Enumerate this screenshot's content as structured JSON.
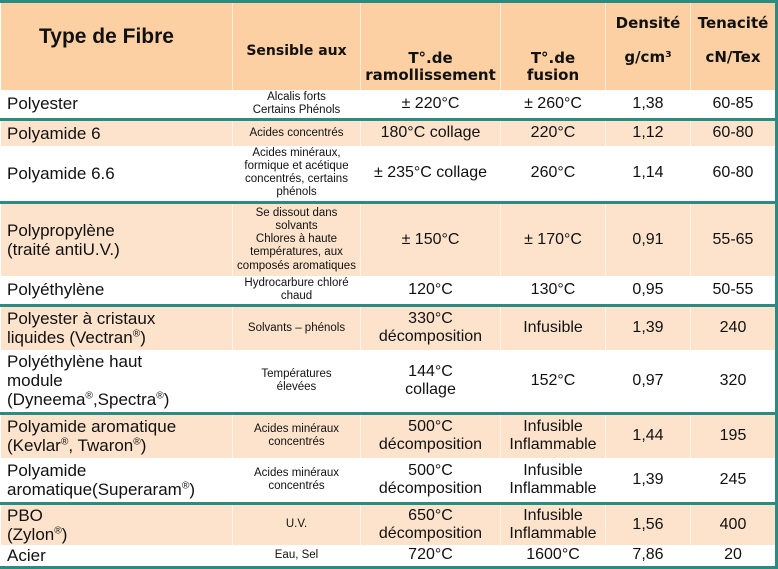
{
  "headers": {
    "type": "Type de Fibre",
    "sensible": "Sensible aux",
    "ramollissement": [
      "T°.de",
      "ramollissement"
    ],
    "fusion": [
      "T°.de",
      "fusion"
    ],
    "densite": [
      "Densité",
      "g/cm³"
    ],
    "tenacite": [
      "Tenacité",
      "cN/Tex"
    ]
  },
  "colors": {
    "header_bg": "#fdd0a4",
    "alt_row_bg": "#fde3cc",
    "border": "#2b8a82"
  },
  "rows": [
    {
      "name": [
        "Polyester"
      ],
      "sensible": [
        "Alcalis forts",
        "Certains Phénols"
      ],
      "ramollissement": [
        "± 220°C"
      ],
      "fusion": [
        "± 260°C"
      ],
      "densite": "1,38",
      "tenacite": "60-85"
    },
    {
      "name": [
        "Polyamide 6"
      ],
      "sensible": [
        "Acides concentrés"
      ],
      "ramollissement": [
        "180°C collage"
      ],
      "fusion": [
        "220°C"
      ],
      "densite": "1,12",
      "tenacite": "60-80"
    },
    {
      "name": [
        "Polyamide 6.6"
      ],
      "sensible": [
        "Acides minéraux,",
        "formique et acétique",
        "concentrés, certains",
        "phénols"
      ],
      "ramollissement": [
        "± 235°C collage"
      ],
      "fusion": [
        "260°C"
      ],
      "densite": "1,14",
      "tenacite": "60-80"
    },
    {
      "name": [
        "Polypropylène",
        "(traité antiU.V.)"
      ],
      "sensible": [
        "Se dissout dans",
        "solvants",
        "Chlores à haute",
        "températures, aux",
        "composés aromatiques"
      ],
      "ramollissement": [
        "± 150°C"
      ],
      "fusion": [
        "± 170°C"
      ],
      "densite": "0,91",
      "tenacite": "55-65"
    },
    {
      "name": [
        "Polyéthylène"
      ],
      "sensible": [
        "Hydrocarbure chloré",
        "chaud"
      ],
      "ramollissement": [
        "120°C"
      ],
      "fusion": [
        "130°C"
      ],
      "densite": "0,95",
      "tenacite": "50-55"
    },
    {
      "name": [
        "Polyester à cristaux",
        "liquides (Vectran®)"
      ],
      "sensible": [
        "Solvants – phénols"
      ],
      "ramollissement": [
        "330°C",
        "décomposition"
      ],
      "fusion": [
        "Infusible"
      ],
      "densite": "1,39",
      "tenacite": "240"
    },
    {
      "name": [
        "Polyéthylène haut",
        "module",
        "(Dyneema®,Spectra®)"
      ],
      "sensible": [
        "Températures",
        "élevées"
      ],
      "ramollissement": [
        "144°C",
        "collage"
      ],
      "fusion": [
        "152°C"
      ],
      "densite": "0,97",
      "tenacite": "320"
    },
    {
      "name": [
        "Polyamide aromatique",
        "(Kevlar®, Twaron®)"
      ],
      "sensible": [
        "Acides minéraux",
        "concentrés"
      ],
      "ramollissement": [
        "500°C",
        "décomposition"
      ],
      "fusion": [
        "Infusible",
        "Inflammable"
      ],
      "densite": "1,44",
      "tenacite": "195"
    },
    {
      "name": [
        "Polyamide",
        "aromatique(Superaram®)"
      ],
      "sensible": [
        "Acides minéraux",
        "concentrés"
      ],
      "ramollissement": [
        "500°C",
        "décomposition"
      ],
      "fusion": [
        "Infusible",
        "Inflammable"
      ],
      "densite": "1,39",
      "tenacite": "245"
    },
    {
      "name": [
        "PBO",
        "(Zylon®)"
      ],
      "sensible": [
        "U.V."
      ],
      "ramollissement": [
        "650°C",
        "décomposition"
      ],
      "fusion": [
        "Infusible",
        "Inflammable"
      ],
      "densite": "1,56",
      "tenacite": "400"
    },
    {
      "name": [
        "Acier"
      ],
      "sensible": [
        "Eau, Sel"
      ],
      "ramollissement": [
        "720°C"
      ],
      "fusion": [
        "1600°C"
      ],
      "densite": "7,86",
      "tenacite": "20"
    }
  ]
}
